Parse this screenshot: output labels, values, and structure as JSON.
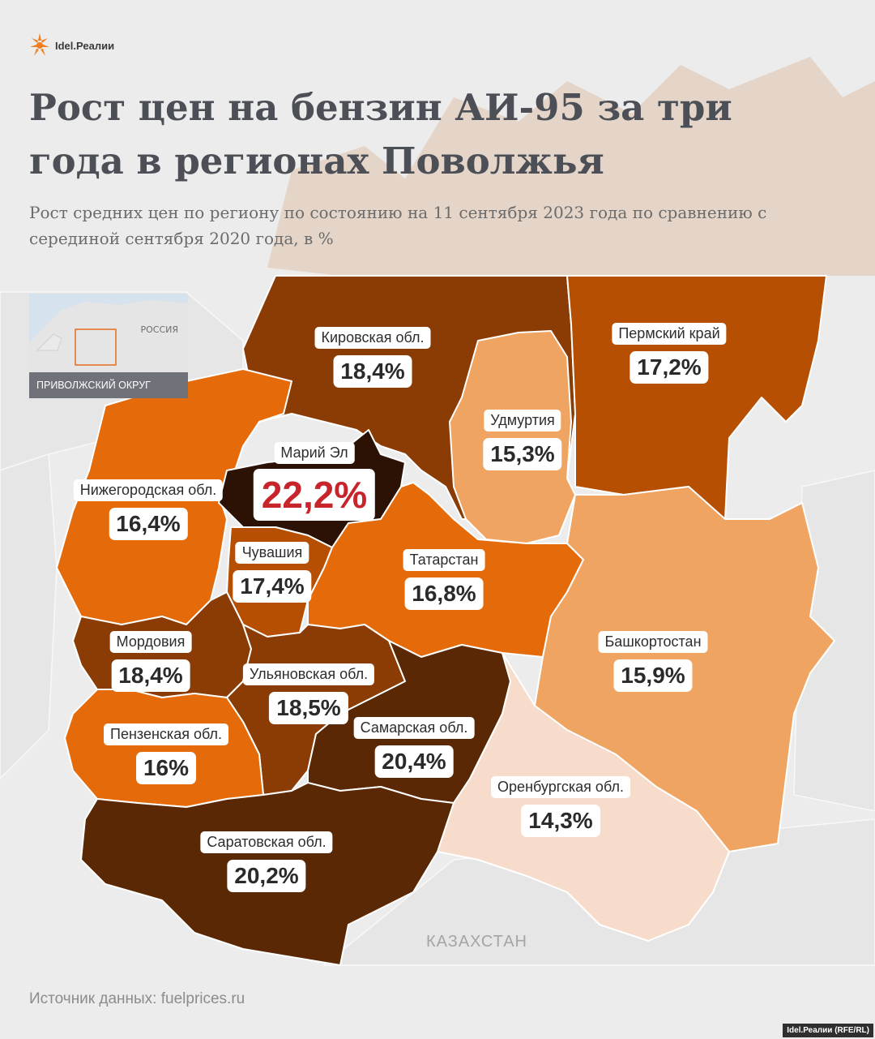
{
  "brand": {
    "name": "Idel.Реалии",
    "credit": "Idel.Реалии (RFE/RL)"
  },
  "title": "Рост цен на бензин АИ-95 за три года в регионах Поволжья",
  "subtitle": "Рост средних цен по региону по состоянию на 11 сентября 2023 года по сравнению с серединой сентября 2020 года, в %",
  "inset": {
    "country_label": "РОССИЯ",
    "district_label": "ПРИВОЛЖСКИЙ ОКРУГ"
  },
  "neighbors": {
    "kazakhstan": "КАЗАХСТАН"
  },
  "source": "Источник данных: fuelprices.ru",
  "colors": {
    "darkest": "#2b1205",
    "very_dark": "#5a2804",
    "dark": "#8a3c04",
    "rust": "#b64f02",
    "orange": "#e56b0a",
    "light": "#efa461",
    "pale": "#f8dccb"
  },
  "regions": [
    {
      "id": "kirov",
      "name": "Кировская обл.",
      "value_label": "18,4%",
      "value": 18.4,
      "color": "#8a3c04"
    },
    {
      "id": "perm",
      "name": "Пермский край",
      "value_label": "17,2%",
      "value": 17.2,
      "color": "#b64f02"
    },
    {
      "id": "udmurtia",
      "name": "Удмуртия",
      "value_label": "15,3%",
      "value": 15.3,
      "color": "#efa461"
    },
    {
      "id": "mari",
      "name": "Марий Эл",
      "value_label": "22,2%",
      "value": 22.2,
      "color": "#2b1205"
    },
    {
      "id": "nizhny",
      "name": "Нижегородская обл.",
      "value_label": "16,4%",
      "value": 16.4,
      "color": "#e56b0a"
    },
    {
      "id": "chuvashia",
      "name": "Чувашия",
      "value_label": "17,4%",
      "value": 17.4,
      "color": "#b64f02"
    },
    {
      "id": "tatarstan",
      "name": "Татарстан",
      "value_label": "16,8%",
      "value": 16.8,
      "color": "#e56b0a"
    },
    {
      "id": "bashkortostan",
      "name": "Башкортостан",
      "value_label": "15,9%",
      "value": 15.9,
      "color": "#efa461"
    },
    {
      "id": "mordovia",
      "name": "Мордовия",
      "value_label": "18,4%",
      "value": 18.4,
      "color": "#8a3c04"
    },
    {
      "id": "ulyanovsk",
      "name": "Ульяновская обл.",
      "value_label": "18,5%",
      "value": 18.5,
      "color": "#8a3c04"
    },
    {
      "id": "samara",
      "name": "Самарская обл.",
      "value_label": "20,4%",
      "value": 20.4,
      "color": "#5a2804"
    },
    {
      "id": "penza",
      "name": "Пензенская обл.",
      "value_label": "16%",
      "value": 16,
      "color": "#e56b0a"
    },
    {
      "id": "orenburg",
      "name": "Оренбургская обл.",
      "value_label": "14,3%",
      "value": 14.3,
      "color": "#f8dccb"
    },
    {
      "id": "saratov",
      "name": "Саратовская обл.",
      "value_label": "20,2%",
      "value": 20.2,
      "color": "#5a2804"
    }
  ]
}
